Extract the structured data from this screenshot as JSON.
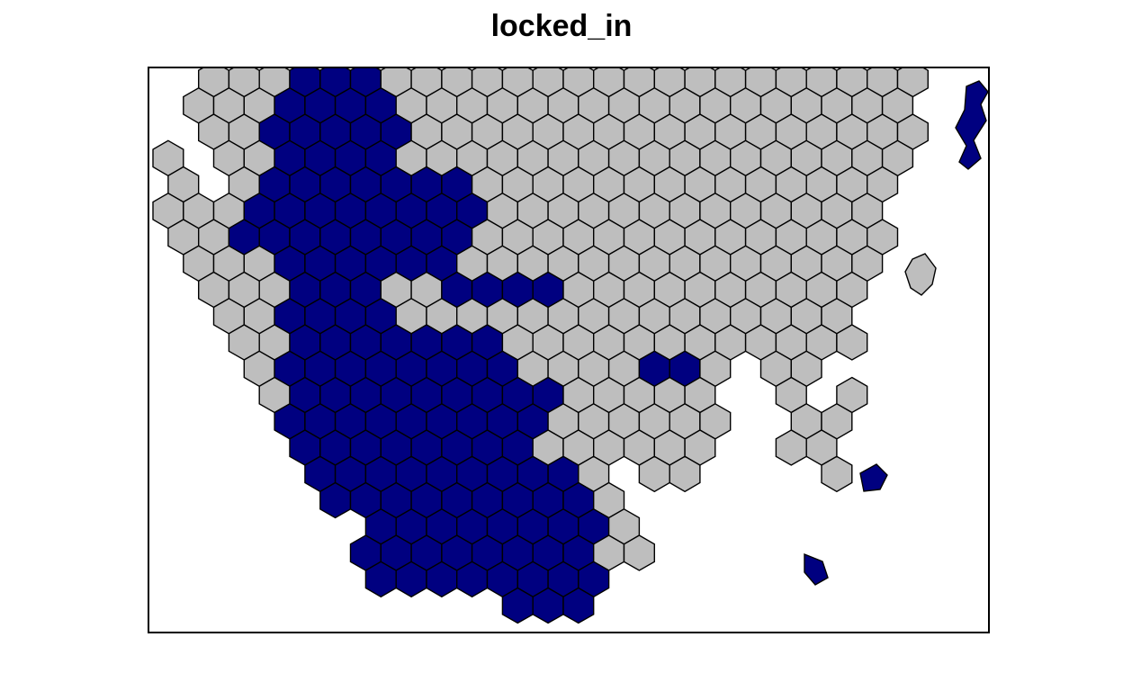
{
  "title": "locked_in",
  "colors": {
    "locked": "#000080",
    "unlocked": "#bebebe",
    "outline": "#000000",
    "background": "#ffffff"
  },
  "legend": "none"
}
